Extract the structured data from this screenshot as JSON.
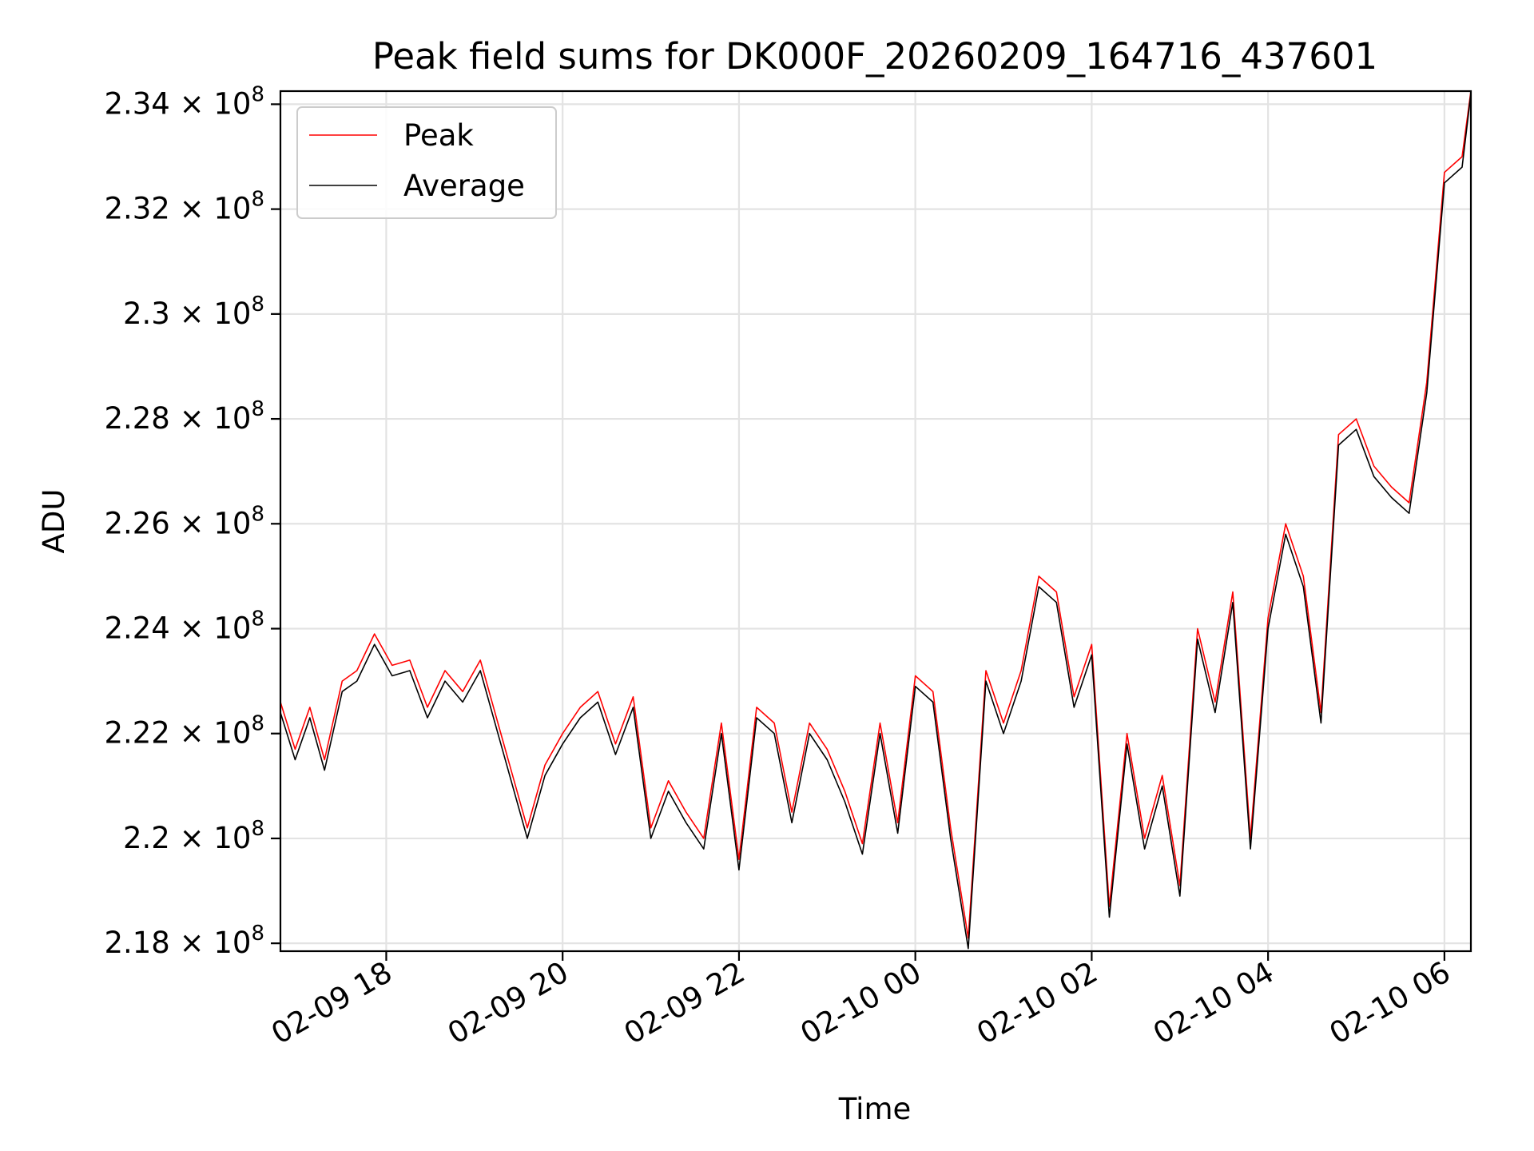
{
  "chart_data": {
    "type": "line",
    "title": "Peak field sums for DK000F_20260209_164716_437601",
    "xlabel": "Time",
    "ylabel": "ADU",
    "xlim": [
      "2026-02-09 16:48",
      "2026-02-10 06:18"
    ],
    "ylim": [
      217850000,
      234250000
    ],
    "grid": true,
    "legend_position": "upper-left",
    "x_ticks": [
      {
        "value": "2026-02-09 18:00",
        "label": "02-09 18"
      },
      {
        "value": "2026-02-09 20:00",
        "label": "02-09 20"
      },
      {
        "value": "2026-02-09 22:00",
        "label": "02-09 22"
      },
      {
        "value": "2026-02-10 00:00",
        "label": "02-10 00"
      },
      {
        "value": "2026-02-10 02:00",
        "label": "02-10 02"
      },
      {
        "value": "2026-02-10 04:00",
        "label": "02-10 04"
      },
      {
        "value": "2026-02-10 06:00",
        "label": "02-10 06"
      }
    ],
    "y_ticks": [
      {
        "value": 218000000,
        "mantissa": "2.18"
      },
      {
        "value": 220000000,
        "mantissa": "2.2"
      },
      {
        "value": 222000000,
        "mantissa": "2.22"
      },
      {
        "value": 224000000,
        "mantissa": "2.24"
      },
      {
        "value": 226000000,
        "mantissa": "2.26"
      },
      {
        "value": 228000000,
        "mantissa": "2.28"
      },
      {
        "value": 230000000,
        "mantissa": "2.3"
      },
      {
        "value": 232000000,
        "mantissa": "2.32"
      },
      {
        "value": 234000000,
        "mantissa": "2.34"
      }
    ],
    "y_tick_suffix": "× 10",
    "y_tick_exponent": "8",
    "series": [
      {
        "name": "Peak",
        "color": "#ff0000"
      },
      {
        "name": "Average",
        "color": "#000000"
      }
    ],
    "x": [
      "2026-02-09 16:48",
      "2026-02-09 16:58",
      "2026-02-09 17:08",
      "2026-02-09 17:18",
      "2026-02-09 17:30",
      "2026-02-09 17:40",
      "2026-02-09 17:52",
      "2026-02-09 18:04",
      "2026-02-09 18:16",
      "2026-02-09 18:28",
      "2026-02-09 18:40",
      "2026-02-09 18:52",
      "2026-02-09 19:04",
      "2026-02-09 19:16",
      "2026-02-09 19:26",
      "2026-02-09 19:36",
      "2026-02-09 19:48",
      "2026-02-09 20:00",
      "2026-02-09 20:12",
      "2026-02-09 20:24",
      "2026-02-09 20:36",
      "2026-02-09 20:48",
      "2026-02-09 21:00",
      "2026-02-09 21:12",
      "2026-02-09 21:24",
      "2026-02-09 21:36",
      "2026-02-09 21:48",
      "2026-02-09 22:00",
      "2026-02-09 22:12",
      "2026-02-09 22:24",
      "2026-02-09 22:36",
      "2026-02-09 22:48",
      "2026-02-09 23:00",
      "2026-02-09 23:12",
      "2026-02-09 23:24",
      "2026-02-09 23:36",
      "2026-02-09 23:48",
      "2026-02-10 00:00",
      "2026-02-10 00:12",
      "2026-02-10 00:24",
      "2026-02-10 00:36",
      "2026-02-10 00:48",
      "2026-02-10 01:00",
      "2026-02-10 01:12",
      "2026-02-10 01:24",
      "2026-02-10 01:36",
      "2026-02-10 01:48",
      "2026-02-10 02:00",
      "2026-02-10 02:12",
      "2026-02-10 02:24",
      "2026-02-10 02:36",
      "2026-02-10 02:48",
      "2026-02-10 03:00",
      "2026-02-10 03:12",
      "2026-02-10 03:24",
      "2026-02-10 03:36",
      "2026-02-10 03:48",
      "2026-02-10 04:00",
      "2026-02-10 04:12",
      "2026-02-10 04:24",
      "2026-02-10 04:36",
      "2026-02-10 04:48",
      "2026-02-10 05:00",
      "2026-02-10 05:12",
      "2026-02-10 05:24",
      "2026-02-10 05:36",
      "2026-02-10 05:48",
      "2026-02-10 06:00",
      "2026-02-10 06:12",
      "2026-02-10 06:18"
    ],
    "average": [
      222400000,
      221500000,
      222300000,
      221300000,
      222800000,
      223000000,
      223700000,
      223100000,
      223200000,
      222300000,
      223000000,
      222600000,
      223200000,
      222000000,
      221000000,
      220000000,
      221200000,
      221800000,
      222300000,
      222600000,
      221600000,
      222500000,
      220000000,
      220900000,
      220300000,
      219800000,
      222000000,
      219400000,
      222300000,
      222000000,
      220300000,
      222000000,
      221500000,
      220700000,
      219700000,
      222000000,
      220100000,
      222900000,
      222600000,
      220000000,
      217900000,
      223000000,
      222000000,
      223000000,
      224800000,
      224500000,
      222500000,
      223500000,
      218500000,
      221800000,
      219800000,
      221000000,
      218900000,
      223800000,
      222400000,
      224500000,
      219800000,
      224000000,
      225800000,
      224800000,
      222200000,
      227500000,
      227800000,
      226900000,
      226500000,
      226200000,
      228500000,
      232500000,
      232800000,
      234200000
    ],
    "peak": [
      222600000,
      221700000,
      222500000,
      221500000,
      223000000,
      223200000,
      223900000,
      223300000,
      223400000,
      222500000,
      223200000,
      222800000,
      223400000,
      222200000,
      221200000,
      220200000,
      221400000,
      222000000,
      222500000,
      222800000,
      221800000,
      222700000,
      220200000,
      221100000,
      220500000,
      220000000,
      222200000,
      219600000,
      222500000,
      222200000,
      220500000,
      222200000,
      221700000,
      220900000,
      219900000,
      222200000,
      220300000,
      223100000,
      222800000,
      220200000,
      218100000,
      223200000,
      222200000,
      223200000,
      225000000,
      224700000,
      222700000,
      223700000,
      218700000,
      222000000,
      220000000,
      221200000,
      219100000,
      224000000,
      222600000,
      224700000,
      220000000,
      224200000,
      226000000,
      225000000,
      222400000,
      227700000,
      228000000,
      227100000,
      226700000,
      226400000,
      228700000,
      232700000,
      233000000,
      234250000
    ]
  }
}
